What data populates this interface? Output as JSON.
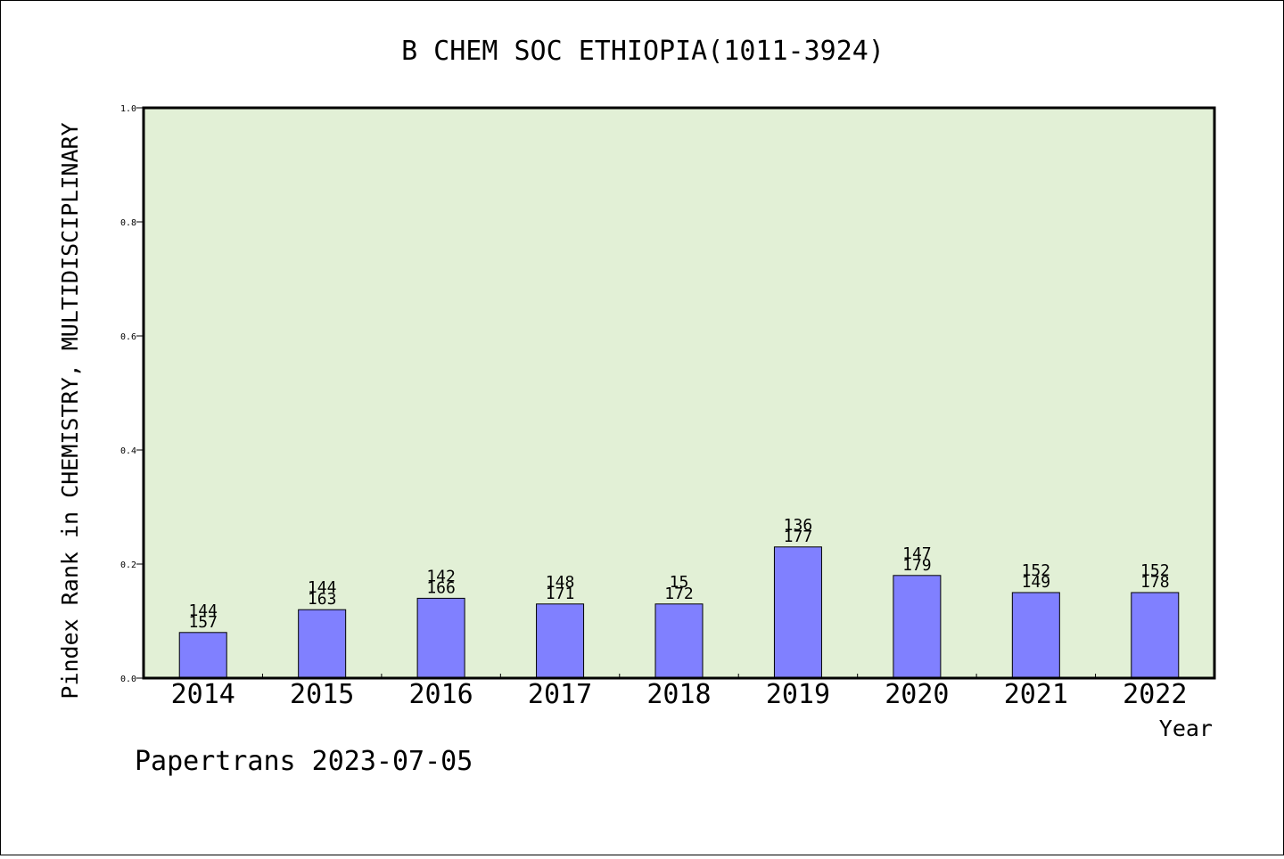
{
  "chart_data": {
    "type": "bar",
    "title": "B CHEM SOC ETHIOPIA(1011-3924)",
    "xlabel": "Year",
    "ylabel": "Pindex Rank in CHEMISTRY, MULTIDISCIPLINARY",
    "categories": [
      "2014",
      "2015",
      "2016",
      "2017",
      "2018",
      "2019",
      "2020",
      "2021",
      "2022"
    ],
    "values": [
      0.08,
      0.12,
      0.14,
      0.13,
      0.13,
      0.23,
      0.18,
      0.15,
      0.15
    ],
    "annotations_top": [
      "144",
      "144",
      "142",
      "148",
      "15",
      "136",
      "147",
      "152",
      "152"
    ],
    "annotations_bottom": [
      "157",
      "163",
      "166",
      "171",
      "172",
      "177",
      "179",
      "149",
      "178"
    ],
    "ylim": [
      0,
      1.0
    ],
    "yticks": [
      "0.0",
      "0.2",
      "0.4",
      "0.6",
      "0.8",
      "1.0"
    ],
    "grid": false,
    "colors": {
      "plot_background": "#e2f0d6",
      "bar": "#8080ff",
      "axis": "#000000"
    }
  },
  "footer": {
    "text": "Papertrans 2023-07-05"
  }
}
